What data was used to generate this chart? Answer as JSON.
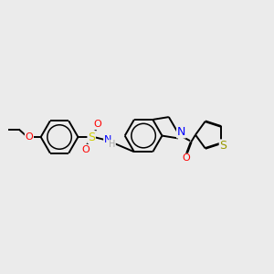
{
  "background_color": "#ebebeb",
  "bond_color": "#000000",
  "atom_colors": {
    "O": "#ff0000",
    "S_sulfo": "#cccc00",
    "S_thio": "#999900",
    "N": "#0000ff",
    "H": "#aaaaaa",
    "C": "#000000"
  },
  "figsize": [
    3.0,
    3.0
  ],
  "dpi": 100,
  "scale": 1.0
}
